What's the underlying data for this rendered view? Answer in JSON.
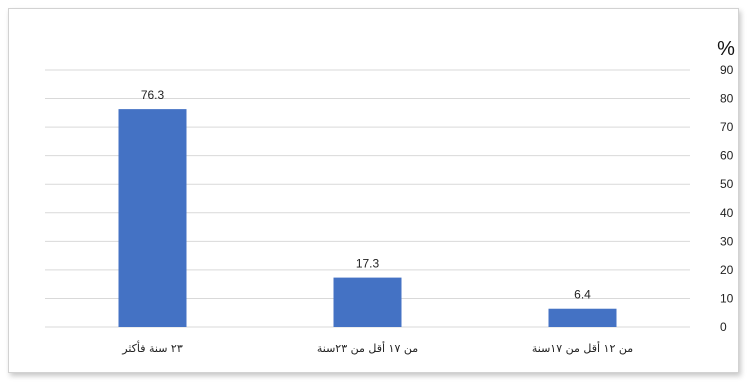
{
  "chart_data": {
    "type": "bar",
    "unit_label": "%",
    "categories": [
      "من ١٢ أقل من ١٧سنة",
      "من ١٧ أقل من ٢٣سنة",
      "٢٣ سنة فأكثر"
    ],
    "values": [
      6.4,
      17.3,
      76.3
    ],
    "value_labels": [
      "6.4",
      "17.3",
      "76.3"
    ],
    "y_ticks": [
      "0",
      "10",
      "20",
      "30",
      "40",
      "50",
      "60",
      "70",
      "80",
      "90"
    ],
    "ylim": [
      0,
      90
    ],
    "grid": true,
    "y_axis_side": "right",
    "category_order": "right-to-left",
    "bar_color": "#4472C4",
    "grid_color": "#d9d9d9"
  }
}
